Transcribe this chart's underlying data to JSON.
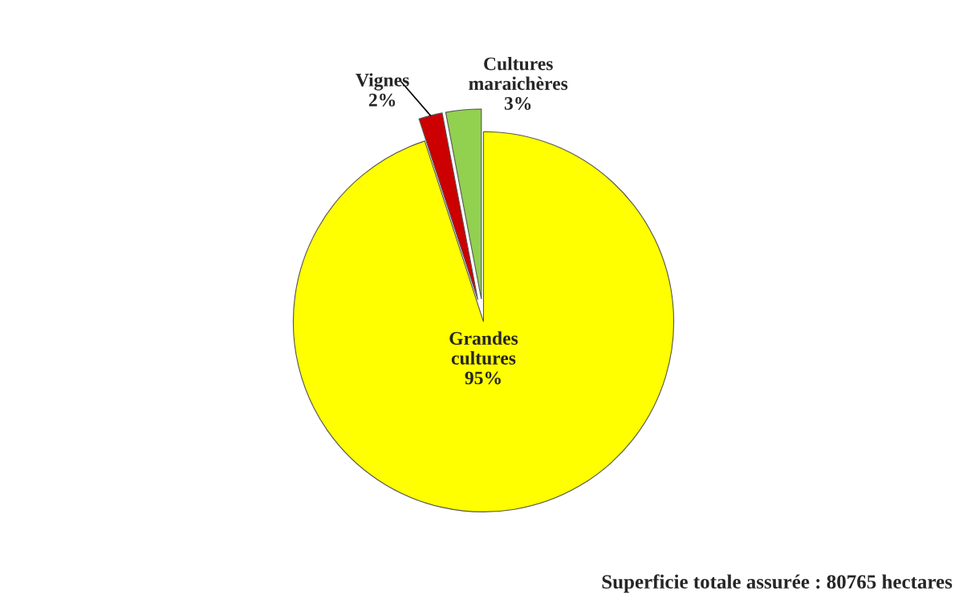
{
  "chart_data": {
    "type": "pie",
    "categories": [
      "Grandes cultures",
      "Vignes",
      "Cultures maraichères"
    ],
    "values": [
      95,
      2,
      3
    ],
    "value_labels": [
      "95%",
      "2%",
      "3%"
    ],
    "colors": [
      "#ffff00",
      "#cc0000",
      "#92d050"
    ],
    "annotations": [
      "Superficie totale assurée : 80765 hectares"
    ]
  }
}
